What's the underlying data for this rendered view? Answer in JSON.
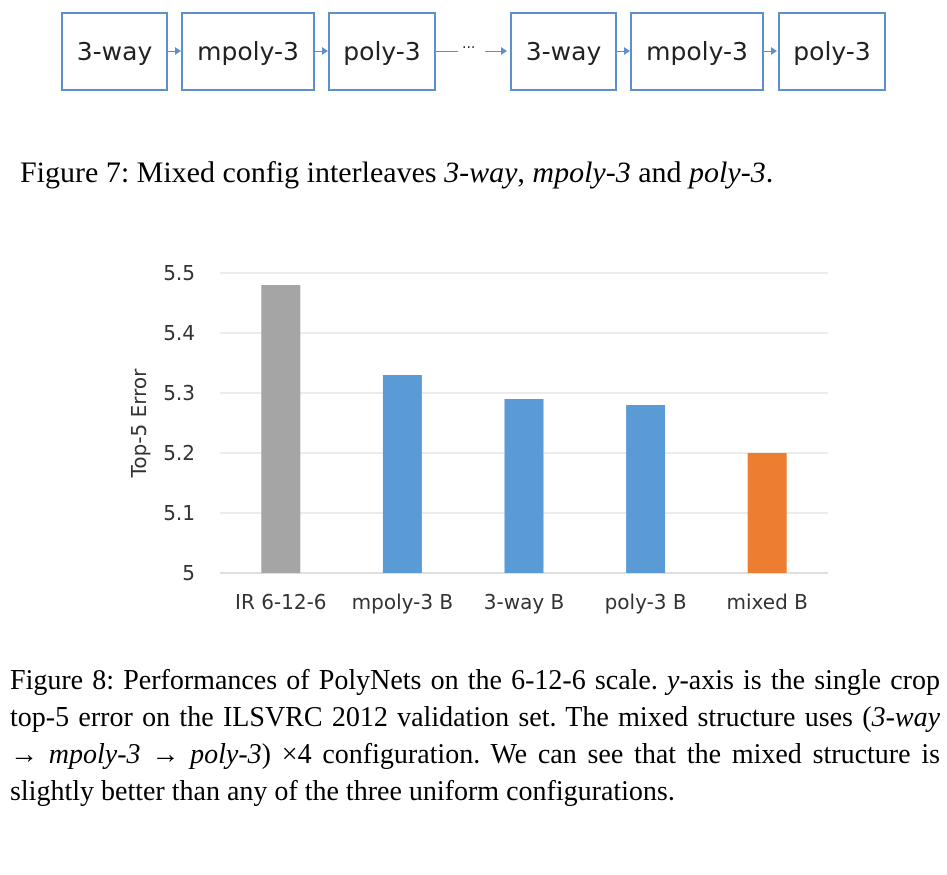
{
  "figure7": {
    "boxes": [
      "3-way",
      "mpoly-3",
      "poly-3",
      "3-way",
      "mpoly-3",
      "poly-3"
    ],
    "ellipsis": "···",
    "caption": {
      "label": "Figure 7:",
      "text_a": "Mixed config interleaves",
      "term1": "3-way",
      "comma": ",",
      "term2": "mpoly-3",
      "and": "and",
      "term3": "poly-3",
      "period": "."
    }
  },
  "chart_data": {
    "type": "bar",
    "categories": [
      "IR 6-12-6",
      "mpoly-3 B",
      "3-way B",
      "poly-3 B",
      "mixed B"
    ],
    "values": [
      5.48,
      5.33,
      5.29,
      5.28,
      5.2
    ],
    "colors": [
      "#a5a5a5",
      "#5b9bd5",
      "#5b9bd5",
      "#5b9bd5",
      "#ed7d31"
    ],
    "ylabel": "Top-5 Error",
    "ylim": [
      5.0,
      5.5
    ],
    "yticks": [
      "5",
      "5.1",
      "5.2",
      "5.3",
      "5.4",
      "5.5"
    ],
    "ytick_values": [
      5.0,
      5.1,
      5.2,
      5.3,
      5.4,
      5.5
    ],
    "grid": true,
    "legend": "none"
  },
  "figure8": {
    "caption": {
      "label": "Figure 8:",
      "s1": "Performances of PolyNets on the 6-12-6 scale.",
      "yvar": "y",
      "s2": "-axis is the single crop top-5 error on the ILSVRC 2012 validation set. The mixed structure uses (",
      "t1": "3-way",
      "arrow1": " → ",
      "t2": "mpoly-3",
      "arrow2": " → ",
      "t3": "poly-3",
      "s3": ") ×4 configuration. We can see that the mixed structure is slightly better than any of the three uniform configurations."
    }
  }
}
